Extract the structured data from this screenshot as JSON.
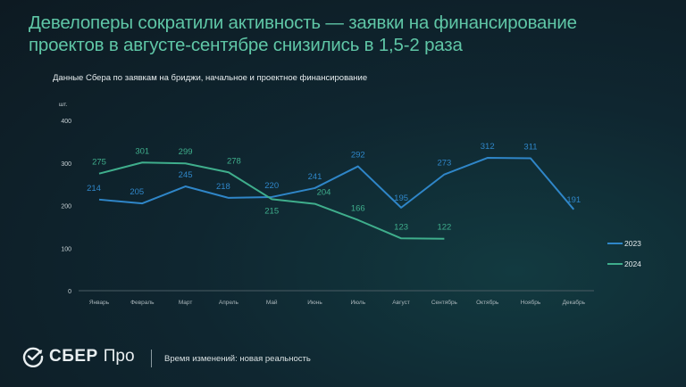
{
  "header": {
    "title_line1": "Девелоперы сократили активность — заявки на финансирование",
    "title_line2": "проектов в августе-сентябре снизились в 1,5-2 раза",
    "subtitle": "Данные Сбера по заявкам на бриджи, начальное и проектное финансирование"
  },
  "footer": {
    "brand": "СБЕР",
    "brand_suffix": "Про",
    "tagline": "Время изменений: новая реальность"
  },
  "colors": {
    "series_2023": "#2f86c8",
    "series_2024": "#3fae8c",
    "title": "#5fc6a6"
  },
  "chart_data": {
    "type": "line",
    "title": "Данные Сбера по заявкам на бриджи, начальное и проектное финансирование",
    "ylabel": "шт.",
    "xlabel": "",
    "ylim": [
      0,
      400
    ],
    "yticks": [
      0,
      100,
      200,
      300,
      400
    ],
    "grid": false,
    "legend_position": "right",
    "categories": [
      "Январь",
      "Февраль",
      "Март",
      "Апрель",
      "Май",
      "Июнь",
      "Июль",
      "Август",
      "Сентябрь",
      "Октябрь",
      "Ноябрь",
      "Декабрь"
    ],
    "series": [
      {
        "name": "2023",
        "color": "#2f86c8",
        "values": [
          214,
          205,
          245,
          218,
          220,
          241,
          292,
          195,
          273,
          312,
          311,
          191
        ]
      },
      {
        "name": "2024",
        "color": "#3fae8c",
        "values": [
          275,
          301,
          299,
          278,
          215,
          204,
          166,
          123,
          122
        ]
      }
    ]
  }
}
